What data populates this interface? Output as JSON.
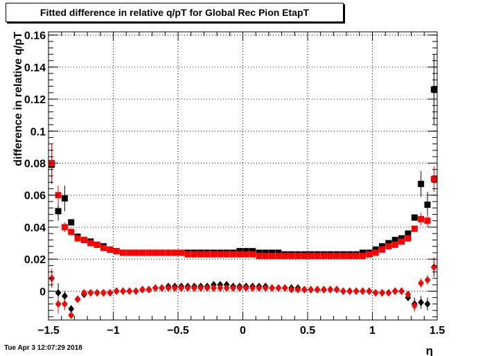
{
  "title": "Fitted difference in relative q/pT for Global Rec Pion EtapT",
  "timestamp": "Tue Apr  3 12:07:29 2018",
  "chart_data": {
    "type": "scatter",
    "title": "Fitted difference in relative q/pT for Global Rec Pion EtapT",
    "xlabel": "η",
    "ylabel": "difference in relative q/pT",
    "xlim": [
      -1.5,
      1.5
    ],
    "ylim": [
      -0.018,
      0.162
    ],
    "grid": true,
    "x_ticks": [
      -1.5,
      -1,
      -0.5,
      0,
      0.5,
      1,
      1.5
    ],
    "x_tick_labels": [
      "−1.5",
      "−1",
      "−0.5",
      "0",
      "0.5",
      "1",
      "1.5"
    ],
    "y_ticks": [
      0,
      0.02,
      0.04,
      0.06,
      0.08,
      0.1,
      0.12,
      0.14,
      0.16
    ],
    "y_tick_labels": [
      "0",
      "0.02",
      "0.04",
      "0.06",
      "0.08",
      "0.1",
      "0.12",
      "0.14",
      "0.16"
    ],
    "x": [
      -1.475,
      -1.425,
      -1.375,
      -1.325,
      -1.275,
      -1.225,
      -1.175,
      -1.125,
      -1.075,
      -1.025,
      -0.975,
      -0.925,
      -0.875,
      -0.825,
      -0.775,
      -0.725,
      -0.675,
      -0.625,
      -0.575,
      -0.525,
      -0.475,
      -0.425,
      -0.375,
      -0.325,
      -0.275,
      -0.225,
      -0.175,
      -0.125,
      -0.075,
      -0.025,
      0.025,
      0.075,
      0.125,
      0.175,
      0.225,
      0.275,
      0.325,
      0.375,
      0.425,
      0.475,
      0.525,
      0.575,
      0.625,
      0.675,
      0.725,
      0.775,
      0.825,
      0.875,
      0.925,
      0.975,
      1.025,
      1.075,
      1.125,
      1.175,
      1.225,
      1.275,
      1.325,
      1.375,
      1.425,
      1.475
    ],
    "series": [
      {
        "color": "#000000",
        "marker": "square",
        "values": [
          0.079,
          0.05,
          0.058,
          0.043,
          0.034,
          0.032,
          0.031,
          0.029,
          0.028,
          0.026,
          0.025,
          0.024,
          0.024,
          0.024,
          0.024,
          0.024,
          0.024,
          0.024,
          0.024,
          0.024,
          0.024,
          0.024,
          0.024,
          0.024,
          0.024,
          0.024,
          0.024,
          0.024,
          0.024,
          0.025,
          0.025,
          0.025,
          0.024,
          0.024,
          0.024,
          0.024,
          0.023,
          0.023,
          0.023,
          0.023,
          0.023,
          0.023,
          0.023,
          0.023,
          0.023,
          0.023,
          0.023,
          0.023,
          0.024,
          0.024,
          0.026,
          0.028,
          0.03,
          0.032,
          0.033,
          0.036,
          0.046,
          0.067,
          0.054,
          0.126
        ],
        "errors": [
          0.012,
          0.006,
          0.008,
          0.002,
          0.002,
          0.001,
          0.001,
          0.001,
          0.001,
          0.001,
          0.001,
          0.001,
          0.001,
          0.001,
          0.001,
          0.001,
          0.001,
          0.001,
          0.001,
          0.001,
          0.001,
          0.001,
          0.001,
          0.001,
          0.001,
          0.001,
          0.001,
          0.001,
          0.001,
          0.001,
          0.001,
          0.001,
          0.001,
          0.001,
          0.001,
          0.001,
          0.001,
          0.001,
          0.001,
          0.001,
          0.001,
          0.001,
          0.001,
          0.001,
          0.001,
          0.001,
          0.001,
          0.001,
          0.001,
          0.001,
          0.001,
          0.001,
          0.001,
          0.001,
          0.001,
          0.002,
          0.002,
          0.008,
          0.008,
          0.022
        ]
      },
      {
        "color": "#ff0000",
        "marker": "square",
        "values": [
          0.08,
          0.06,
          0.04,
          0.037,
          0.033,
          0.032,
          0.03,
          0.029,
          0.027,
          0.026,
          0.025,
          0.024,
          0.024,
          0.024,
          0.024,
          0.024,
          0.024,
          0.024,
          0.024,
          0.024,
          0.024,
          0.023,
          0.023,
          0.023,
          0.023,
          0.023,
          0.023,
          0.023,
          0.023,
          0.023,
          0.023,
          0.023,
          0.022,
          0.022,
          0.022,
          0.022,
          0.022,
          0.022,
          0.022,
          0.022,
          0.022,
          0.022,
          0.022,
          0.022,
          0.022,
          0.022,
          0.022,
          0.022,
          0.022,
          0.023,
          0.024,
          0.026,
          0.028,
          0.029,
          0.031,
          0.033,
          0.039,
          0.045,
          0.044,
          0.07
        ],
        "errors": [
          0.012,
          0.006,
          0.003,
          0.002,
          0.002,
          0.001,
          0.001,
          0.001,
          0.001,
          0.001,
          0.001,
          0.001,
          0.001,
          0.001,
          0.001,
          0.001,
          0.001,
          0.001,
          0.001,
          0.001,
          0.001,
          0.001,
          0.001,
          0.001,
          0.001,
          0.001,
          0.001,
          0.001,
          0.001,
          0.001,
          0.001,
          0.001,
          0.001,
          0.001,
          0.001,
          0.001,
          0.001,
          0.001,
          0.001,
          0.001,
          0.001,
          0.001,
          0.001,
          0.001,
          0.001,
          0.001,
          0.001,
          0.001,
          0.001,
          0.001,
          0.001,
          0.001,
          0.001,
          0.001,
          0.001,
          0.002,
          0.002,
          0.004,
          0.004,
          0.008
        ]
      },
      {
        "color": "#000000",
        "marker": "diamond",
        "values": [
          0.008,
          -0.001,
          -0.003,
          -0.011,
          -0.005,
          -0.002,
          -0.001,
          -0.001,
          -0.001,
          -0.001,
          0.0,
          0.0,
          0.0,
          0.0,
          0.001,
          0.001,
          0.002,
          0.002,
          0.003,
          0.003,
          0.003,
          0.003,
          0.003,
          0.003,
          0.003,
          0.004,
          0.004,
          0.004,
          0.003,
          0.003,
          0.003,
          0.003,
          0.003,
          0.003,
          0.002,
          0.002,
          0.002,
          0.002,
          0.002,
          0.001,
          0.001,
          0.001,
          0.001,
          0.001,
          0.001,
          0.0,
          0.0,
          0.0,
          0.0,
          0.0,
          -0.001,
          -0.001,
          -0.001,
          0.0,
          0.0,
          -0.004,
          -0.008,
          -0.007,
          -0.008,
          0.015
        ],
        "errors": [
          0.005,
          0.006,
          0.003,
          0.002,
          0.002,
          0.001,
          0.001,
          0.001,
          0.001,
          0.001,
          0.001,
          0.001,
          0.001,
          0.001,
          0.001,
          0.001,
          0.001,
          0.001,
          0.001,
          0.001,
          0.001,
          0.001,
          0.001,
          0.001,
          0.001,
          0.001,
          0.001,
          0.001,
          0.001,
          0.001,
          0.001,
          0.001,
          0.001,
          0.001,
          0.001,
          0.001,
          0.001,
          0.001,
          0.001,
          0.001,
          0.001,
          0.001,
          0.001,
          0.001,
          0.001,
          0.001,
          0.001,
          0.001,
          0.001,
          0.001,
          0.001,
          0.001,
          0.001,
          0.001,
          0.001,
          0.002,
          0.004,
          0.004,
          0.004,
          0.006
        ]
      },
      {
        "color": "#ff0000",
        "marker": "diamond",
        "values": [
          0.008,
          -0.008,
          -0.008,
          -0.015,
          -0.005,
          -0.001,
          -0.001,
          -0.001,
          -0.001,
          -0.001,
          0.0,
          0.0,
          0.0,
          0.0,
          0.001,
          0.001,
          0.002,
          0.002,
          0.002,
          0.002,
          0.002,
          0.002,
          0.002,
          0.002,
          0.002,
          0.002,
          0.002,
          0.002,
          0.002,
          0.002,
          0.002,
          0.002,
          0.002,
          0.002,
          0.002,
          0.002,
          0.002,
          0.001,
          0.001,
          0.001,
          0.001,
          0.001,
          0.001,
          0.001,
          0.001,
          0.0,
          0.0,
          0.0,
          0.0,
          0.0,
          -0.001,
          -0.001,
          -0.001,
          0.0,
          0.0,
          -0.002,
          -0.009,
          0.005,
          0.007,
          0.015
        ],
        "errors": [
          0.006,
          0.006,
          0.004,
          0.002,
          0.002,
          0.001,
          0.001,
          0.001,
          0.001,
          0.001,
          0.001,
          0.001,
          0.001,
          0.001,
          0.001,
          0.001,
          0.001,
          0.001,
          0.001,
          0.001,
          0.001,
          0.001,
          0.001,
          0.001,
          0.001,
          0.001,
          0.001,
          0.001,
          0.001,
          0.001,
          0.001,
          0.001,
          0.001,
          0.001,
          0.001,
          0.001,
          0.001,
          0.001,
          0.001,
          0.001,
          0.001,
          0.001,
          0.001,
          0.001,
          0.001,
          0.001,
          0.001,
          0.001,
          0.001,
          0.001,
          0.001,
          0.001,
          0.001,
          0.001,
          0.001,
          0.002,
          0.004,
          0.003,
          0.003,
          0.006
        ]
      }
    ]
  }
}
